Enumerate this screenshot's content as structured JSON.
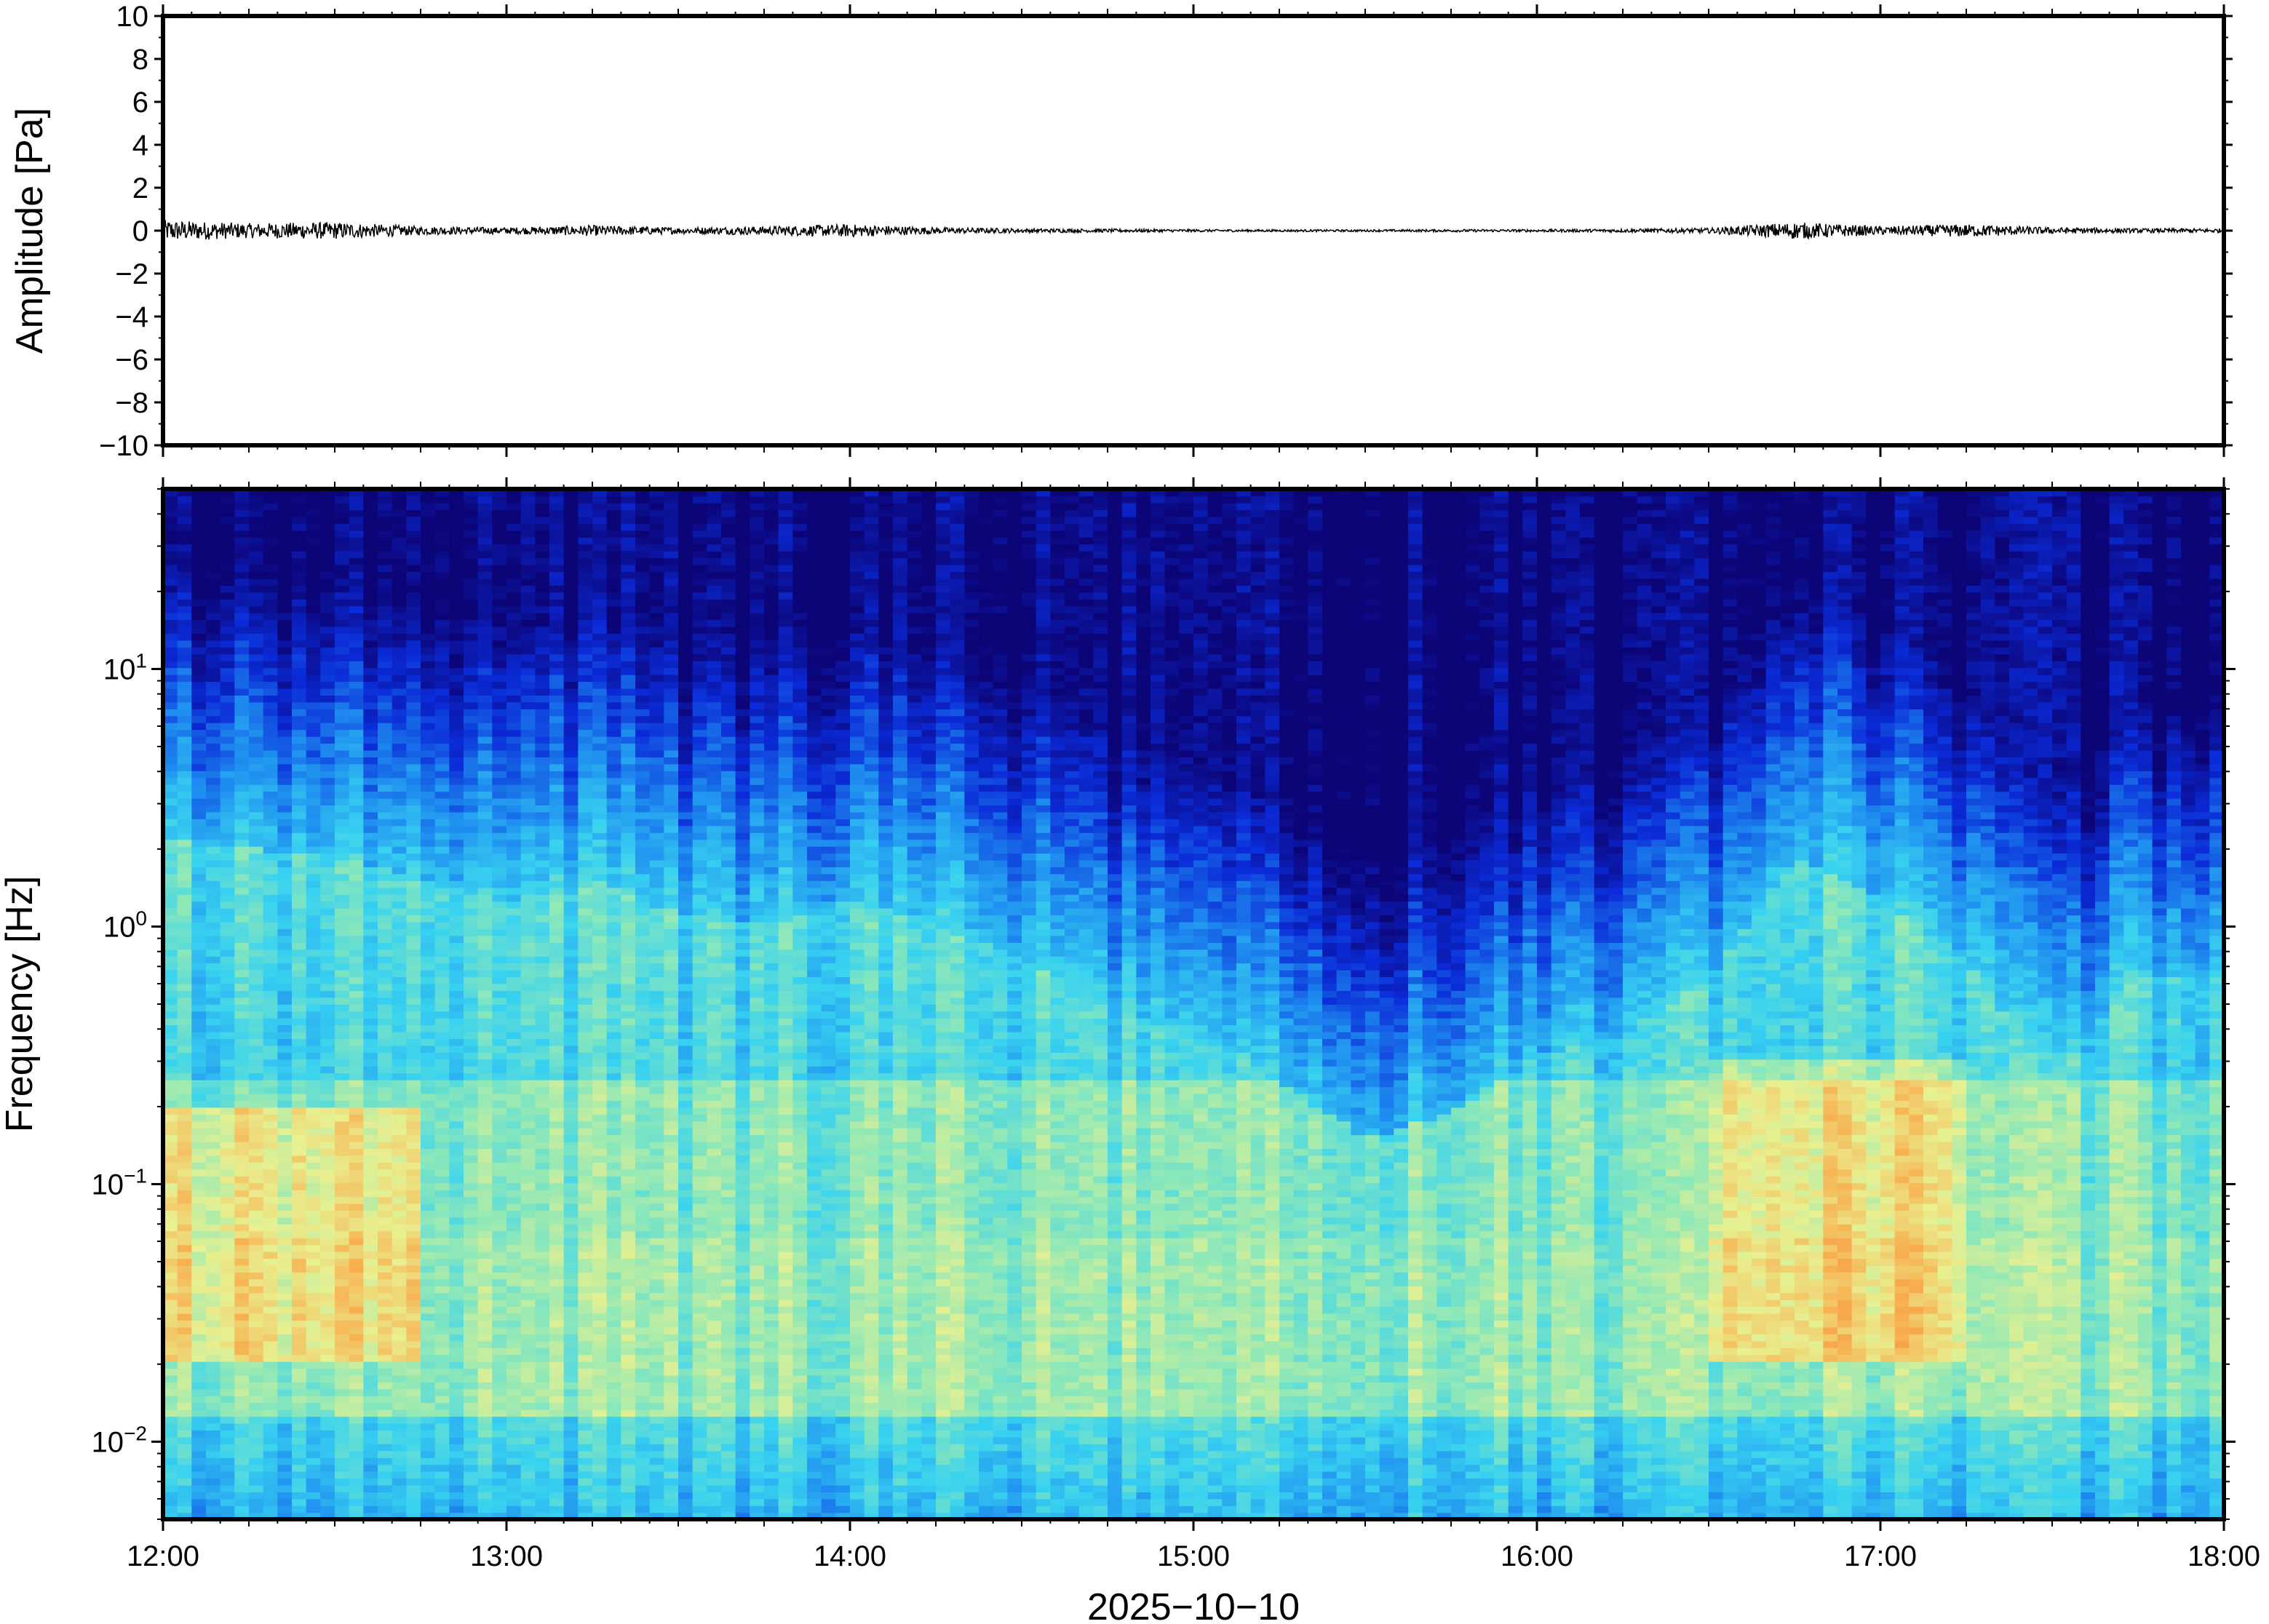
{
  "chart_data": [
    {
      "type": "line",
      "title": "",
      "ylabel": "Amplitude [Pa]",
      "ylim": [
        -10,
        10
      ],
      "y_ticks": [
        10,
        8,
        6,
        4,
        2,
        0,
        -2,
        -4,
        -6,
        -8,
        -10
      ],
      "y_tick_labels": [
        "10",
        "8",
        "6",
        "4",
        "2",
        "0",
        "−2",
        "−4",
        "−6",
        "−8",
        "−10"
      ],
      "xlim": [
        "12:00",
        "18:00"
      ],
      "trace_color": "#000000",
      "envelope": {
        "x": [
          "12:00",
          "12:15",
          "12:30",
          "12:45",
          "13:00",
          "13:15",
          "13:30",
          "13:45",
          "14:00",
          "14:15",
          "14:30",
          "14:45",
          "15:00",
          "15:15",
          "15:30",
          "15:45",
          "16:00",
          "16:15",
          "16:30",
          "16:45",
          "17:00",
          "17:15",
          "17:30",
          "17:45",
          "18:00"
        ],
        "peak_pa": [
          0.5,
          0.35,
          0.4,
          0.2,
          0.15,
          0.25,
          0.15,
          0.2,
          0.3,
          0.15,
          0.1,
          0.08,
          0.06,
          0.05,
          0.05,
          0.06,
          0.06,
          0.08,
          0.12,
          0.4,
          0.2,
          0.3,
          0.15,
          0.1,
          0.1
        ]
      }
    },
    {
      "type": "heatmap",
      "title": "",
      "ylabel": "Frequency [Hz]",
      "xlabel": "2025−10−10",
      "y_scale": "log",
      "ylim": [
        0.005,
        50
      ],
      "y_tick_labels": [
        {
          "value": 10,
          "base": "10",
          "exp": "1"
        },
        {
          "value": 1,
          "base": "10",
          "exp": "0"
        },
        {
          "value": 0.1,
          "base": "10",
          "exp": "−1"
        },
        {
          "value": 0.01,
          "base": "10",
          "exp": "−2"
        }
      ],
      "x_ticks": [
        "12:00",
        "13:00",
        "14:00",
        "15:00",
        "16:00",
        "17:00",
        "18:00"
      ],
      "colormap": "jet",
      "colormap_stops": [
        "#0c0578",
        "#0b2bd8",
        "#1f8ff0",
        "#38d2f0",
        "#8ee8b8",
        "#e8f090",
        "#f8b050",
        "#f07030"
      ],
      "time_columns": [
        "12:00",
        "12:15",
        "12:30",
        "12:45",
        "13:00",
        "13:15",
        "13:30",
        "13:45",
        "14:00",
        "14:15",
        "14:30",
        "14:45",
        "15:00",
        "15:15",
        "15:30",
        "15:45",
        "16:00",
        "16:15",
        "16:30",
        "16:45",
        "17:00",
        "17:15",
        "17:30",
        "17:45"
      ],
      "upper_cutoff_hz": [
        18,
        16,
        15,
        12,
        10,
        12,
        9,
        8,
        10,
        8,
        6,
        4,
        3,
        2,
        1.2,
        1.5,
        2.5,
        3,
        5,
        15,
        10,
        6,
        2,
        5
      ],
      "high_energy_regions": [
        {
          "time": [
            "12:00",
            "12:45"
          ],
          "freq_hz": [
            0.02,
            0.2
          ]
        },
        {
          "time": [
            "16:30",
            "17:15"
          ],
          "freq_hz": [
            0.02,
            0.3
          ]
        }
      ]
    }
  ]
}
